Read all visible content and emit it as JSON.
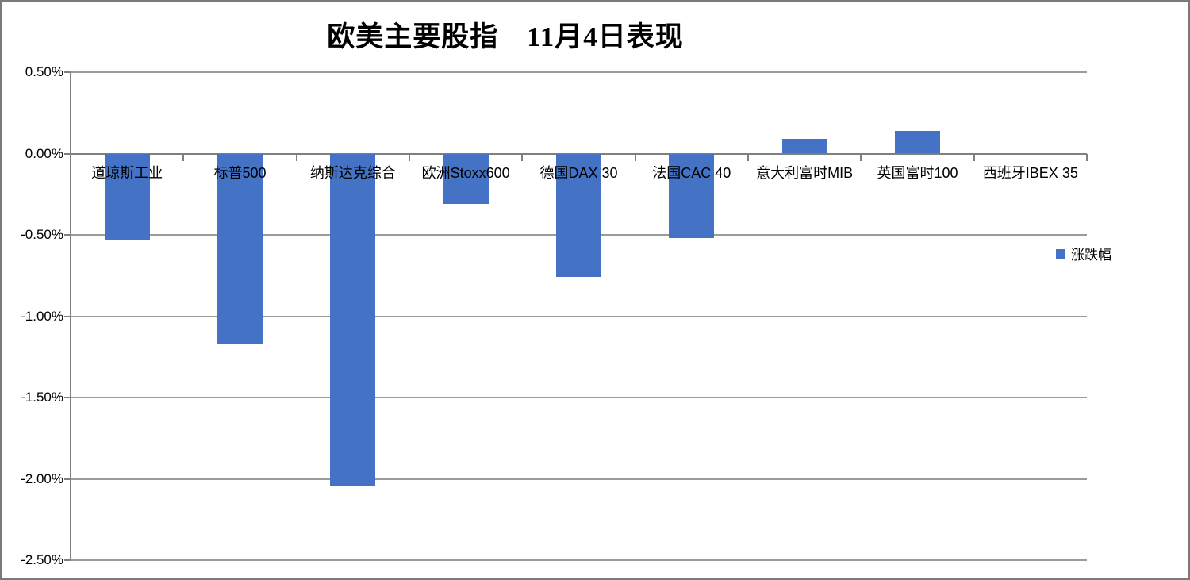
{
  "chart_data": {
    "type": "bar",
    "title": "欧美主要股指　11月4日表现",
    "categories": [
      "道琼斯工业",
      "标普500",
      "纳斯达克综合",
      "欧洲Stoxx600",
      "德国DAX 30",
      "法国CAC 40",
      "意大利富时MIB",
      "英国富时100",
      "西班牙IBEX 35"
    ],
    "series": [
      {
        "name": "涨跌幅",
        "values": [
          -0.53,
          -1.17,
          -2.04,
          -0.31,
          -0.76,
          -0.52,
          0.09,
          0.14,
          0.0
        ]
      }
    ],
    "legend": {
      "label": "涨跌幅",
      "position": "right"
    },
    "y_axis": {
      "unit": "%",
      "max": 0.5,
      "min": -2.5,
      "tick_labels": [
        "0.50%",
        "0.00%",
        "-0.50%",
        "-1.00%",
        "-1.50%",
        "-2.00%",
        "-2.50%"
      ],
      "tick_values": [
        0.5,
        0.0,
        -0.5,
        -1.0,
        -1.5,
        -2.0,
        -2.5
      ]
    },
    "grid": true,
    "colors": {
      "bar": "#4472C4",
      "gridline": "#9B9B9B",
      "axis": "#7F7F7F",
      "text": "#000000",
      "background": "#FFFFFF",
      "canvas_border": "#7A7A7A"
    }
  }
}
